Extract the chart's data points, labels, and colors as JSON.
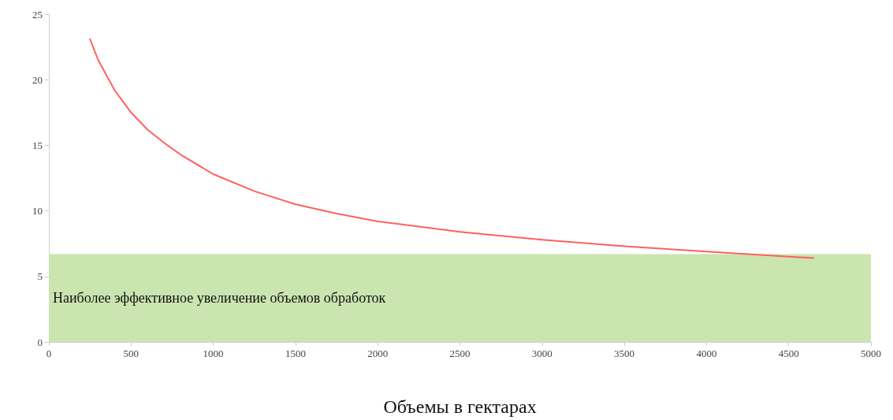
{
  "chart_data": {
    "type": "line",
    "xlabel": "Объемы в гектарах",
    "x": [
      250,
      300,
      400,
      500,
      600,
      700,
      800,
      1000,
      1250,
      1500,
      1750,
      2000,
      2500,
      3000,
      3500,
      4000,
      4650
    ],
    "series": [
      {
        "color": "#ff6060",
        "values": [
          23.1,
          21.5,
          19.2,
          17.5,
          16.2,
          15.2,
          14.3,
          12.8,
          11.5,
          10.5,
          9.8,
          9.2,
          8.4,
          7.8,
          7.3,
          6.9,
          6.4
        ]
      }
    ],
    "xlim": [
      0,
      5000
    ],
    "xticks": [
      0,
      500,
      1000,
      1500,
      2000,
      2500,
      3000,
      3500,
      4000,
      4500,
      5000
    ],
    "ylim": [
      0,
      25
    ],
    "yticks": [
      0,
      5,
      10,
      15,
      20,
      25
    ],
    "bands": [
      {
        "axis": "y",
        "from": 0,
        "to": 6.7,
        "label": "Наиболее эффективное увеличение объемов обработок",
        "color": "#cbe5b0"
      }
    ],
    "grid": false,
    "marker": "none",
    "line_style": "solid"
  }
}
